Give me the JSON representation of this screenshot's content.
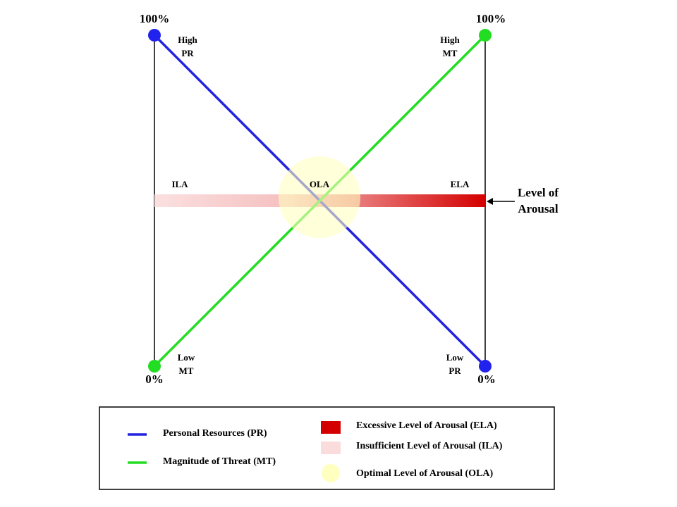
{
  "diagram": {
    "top_left": {
      "percent": "100%",
      "label": [
        "High",
        "PR"
      ]
    },
    "top_right": {
      "percent": "100%",
      "label": [
        "High",
        "MT"
      ]
    },
    "bottom_left": {
      "percent": "0%",
      "label": [
        "Low",
        "MT"
      ]
    },
    "bottom_right": {
      "percent": "0%",
      "label": [
        "Low",
        "PR"
      ]
    },
    "zones": {
      "ila": "ILA",
      "ola": "OLA",
      "ela": "ELA"
    },
    "arousal_label": [
      "Level of",
      "Arousal"
    ]
  },
  "legend": {
    "pr": "Personal Resources  (PR)",
    "mt": "Magnitude of Threat (MT)",
    "ela": "Excessive Level of Arousal  (ELA)",
    "ila": "Insufficient Level of Arousal  (ILA)",
    "ola": "Optimal Level of Arousal  (OLA)"
  }
}
